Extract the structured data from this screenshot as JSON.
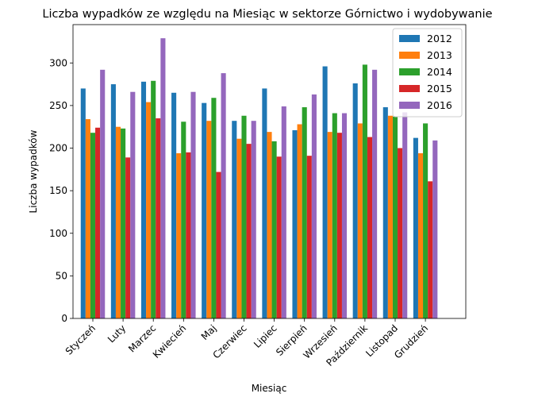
{
  "chart_data": {
    "type": "bar",
    "title": "Liczba wypadków ze względu na Miesiąc w sektorze Górnictwo i wydobywanie",
    "xlabel": "Miesiąc",
    "ylabel": "Liczba wypadków",
    "categories": [
      "Styczeń",
      "Luty",
      "Marzec",
      "Kwiecień",
      "Maj",
      "Czerwiec",
      "Lipiec",
      "Sierpień",
      "Wrzesień",
      "Październik",
      "Listopad",
      "Grudzień"
    ],
    "ylim": [
      0,
      345
    ],
    "yticks": [
      0,
      50,
      100,
      150,
      200,
      250,
      300
    ],
    "grid": false,
    "legend_position": "top-right",
    "series": [
      {
        "name": "2012",
        "color": "#1f77b4",
        "values": [
          270,
          275,
          278,
          265,
          253,
          232,
          270,
          221,
          296,
          276,
          248,
          212
        ]
      },
      {
        "name": "2013",
        "color": "#ff7f0e",
        "values": [
          234,
          225,
          254,
          194,
          232,
          211,
          219,
          228,
          219,
          229,
          238,
          194
        ]
      },
      {
        "name": "2014",
        "color": "#2ca02c",
        "values": [
          218,
          223,
          279,
          231,
          259,
          238,
          208,
          248,
          241,
          298,
          237,
          229
        ]
      },
      {
        "name": "2015",
        "color": "#d62728",
        "values": [
          224,
          189,
          235,
          195,
          172,
          205,
          190,
          191,
          218,
          213,
          200,
          161
        ]
      },
      {
        "name": "2016",
        "color": "#9467bd",
        "values": [
          292,
          266,
          329,
          266,
          288,
          232,
          249,
          263,
          241,
          292,
          242,
          209
        ]
      }
    ]
  }
}
